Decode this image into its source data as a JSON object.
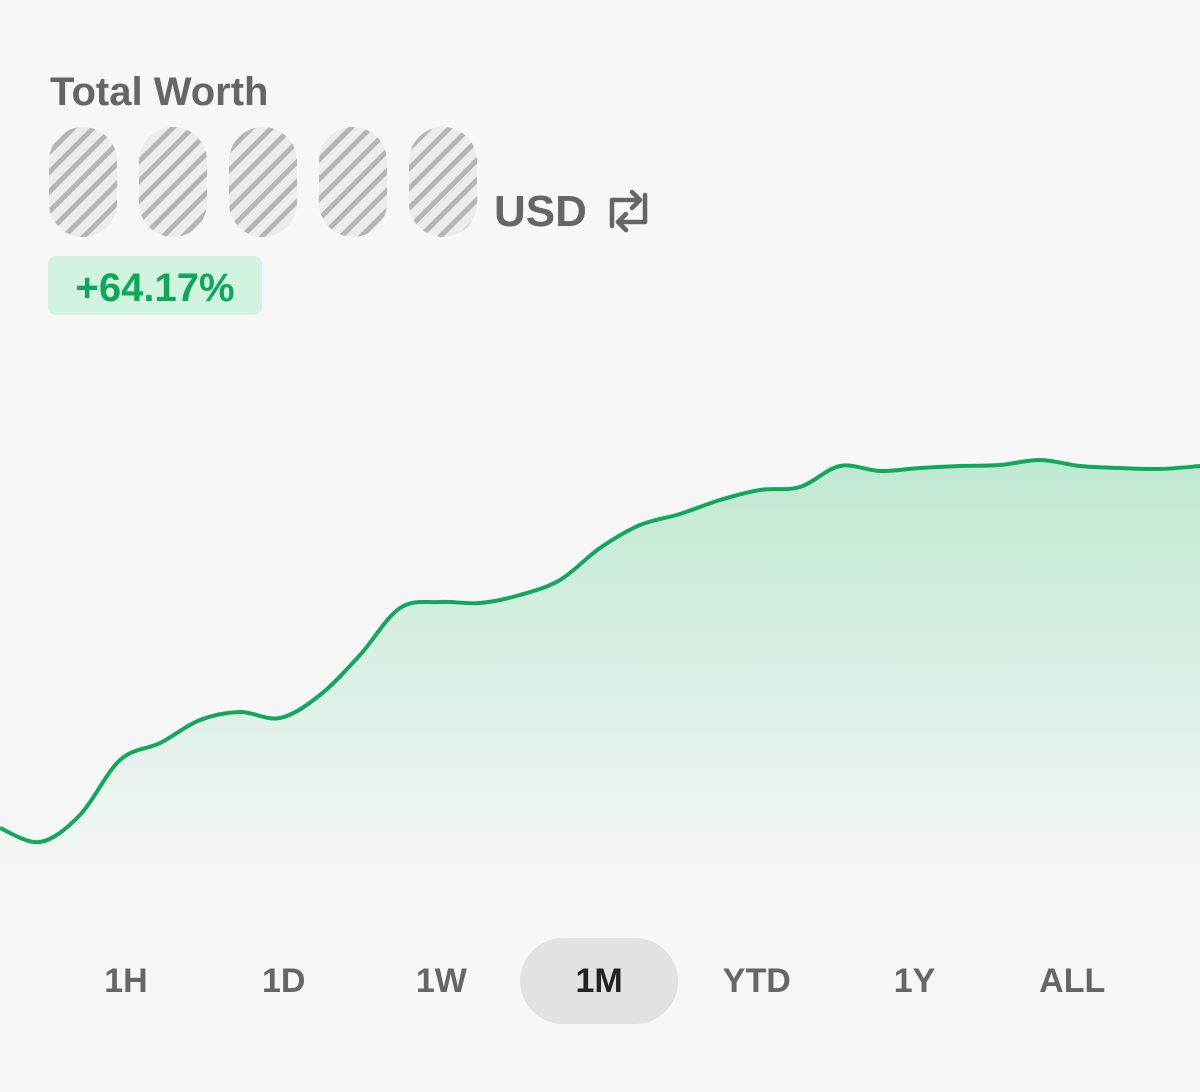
{
  "header": {
    "title": "Total Worth",
    "currency": "USD",
    "change": "+64.17%"
  },
  "chart_data": {
    "type": "line",
    "color": "#12a85c",
    "values": [
      42,
      28,
      55,
      110,
      127,
      150,
      158,
      152,
      175,
      215,
      262,
      268,
      267,
      275,
      290,
      322,
      345,
      356,
      370,
      380,
      383,
      404,
      399,
      402,
      404,
      405,
      410,
      404,
      402,
      401,
      404
    ],
    "ylim": [
      0,
      500
    ]
  },
  "tabs": {
    "labels": [
      "1H",
      "1D",
      "1W",
      "1M",
      "YTD",
      "1Y",
      "ALL"
    ],
    "selected": 3
  }
}
